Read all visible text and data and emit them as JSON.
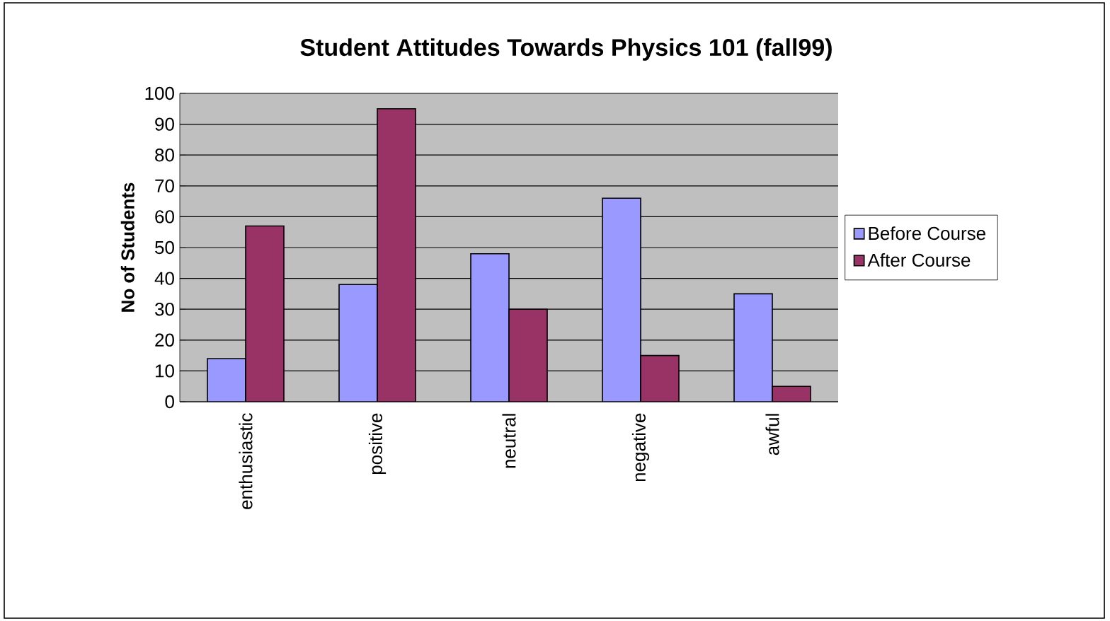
{
  "chart_data": {
    "type": "bar",
    "title": "Student Attitudes Towards Physics 101 (fall99)",
    "ylabel": "No of Students",
    "categories": [
      "enthusiastic",
      "positive",
      "neutral",
      "negative",
      "awful"
    ],
    "series": [
      {
        "name": "Before Course",
        "color": "#9999ff",
        "values": [
          14,
          38,
          48,
          66,
          35
        ]
      },
      {
        "name": "After Course",
        "color": "#993366",
        "values": [
          57,
          95,
          30,
          15,
          5
        ]
      }
    ],
    "ylim": [
      0,
      100
    ],
    "yticks": [
      0,
      10,
      20,
      30,
      40,
      50,
      60,
      70,
      80,
      90,
      100
    ],
    "grid": "y",
    "legend": "right"
  }
}
